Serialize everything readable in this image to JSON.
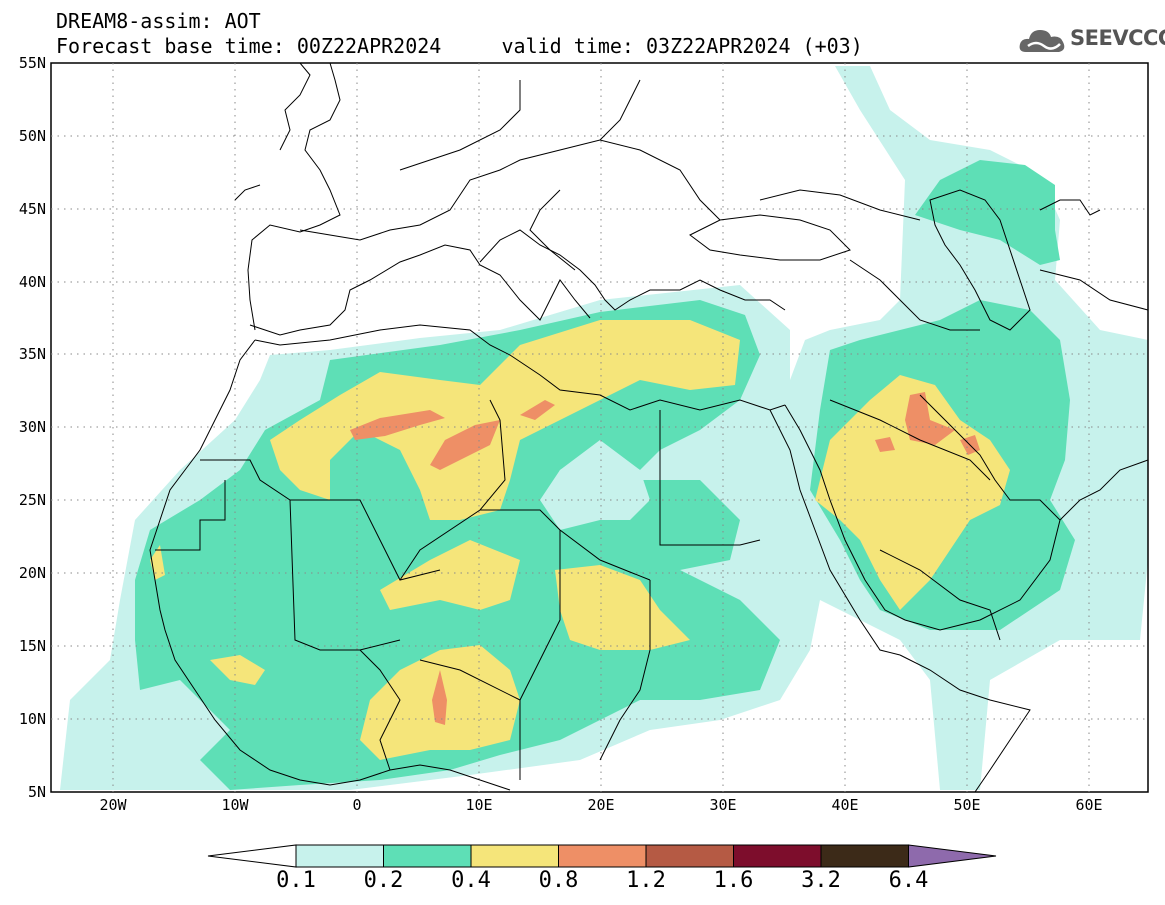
{
  "title": {
    "line1": "DREAM8-assim: AOT",
    "line2": "Forecast base time: 00Z22APR2024     valid time: 03Z22APR2024 (+03)"
  },
  "logo": {
    "text": "SEEVCCC",
    "icon": "cloud-icon",
    "color": "#555555"
  },
  "map": {
    "lat_labels": [
      "55N",
      "50N",
      "45N",
      "40N",
      "35N",
      "30N",
      "25N",
      "20N",
      "15N",
      "10N",
      "5N"
    ],
    "lon_labels": [
      "20W",
      "10W",
      "0",
      "10E",
      "20E",
      "30E",
      "40E",
      "50E",
      "60E"
    ],
    "extent": {
      "lon": [
        -25,
        65
      ],
      "lat": [
        5,
        55
      ]
    },
    "grid": "dotted"
  },
  "colorbar": {
    "labels": [
      "0.1",
      "0.2",
      "0.4",
      "0.8",
      "1.2",
      "1.6",
      "3.2",
      "6.4"
    ],
    "colors": [
      "#ffffff",
      "#c7f2ec",
      "#5edfb6",
      "#f5e57a",
      "#ee8f66",
      "#b55a44",
      "#7d0d2c",
      "#3c2a18",
      "#8e6aac"
    ]
  }
}
